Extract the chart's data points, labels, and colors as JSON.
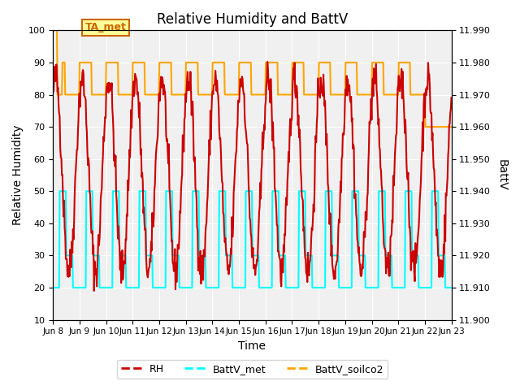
{
  "title": "Relative Humidity and BattV",
  "xlabel": "Time",
  "ylabel_left": "Relative Humidity",
  "ylabel_right": "BattV",
  "ylim_left": [
    10,
    100
  ],
  "ylim_right": [
    11.9,
    11.99
  ],
  "yticks_left": [
    10,
    20,
    30,
    40,
    50,
    60,
    70,
    80,
    90,
    100
  ],
  "yticks_right": [
    11.9,
    11.91,
    11.92,
    11.93,
    11.94,
    11.95,
    11.96,
    11.97,
    11.98,
    11.99
  ],
  "xtick_labels": [
    "Jun 8",
    "Jun 9",
    "Jun 10",
    "Jun 11",
    "Jun 12",
    "Jun 13",
    "Jun 14",
    "Jun 15",
    "Jun 16",
    "Jun 17",
    "Jun 18",
    "Jun 19",
    "Jun 20",
    "Jun 21",
    "Jun 22",
    "Jun 23"
  ],
  "background_color": "#ffffff",
  "plot_bg_color": "#f0f0f0",
  "grid_color": "#ffffff",
  "annotation_text": "TA_met",
  "annotation_color": "#cc6600",
  "annotation_bg": "#ffff99",
  "rh_color": "#cc0000",
  "battv_met_color": "#00ffff",
  "battv_soilco2_color": "#ffa500",
  "legend_labels": [
    "RH",
    "BattV_met",
    "BattV_soilco2"
  ],
  "rh_linewidth": 1.5,
  "battv_linewidth": 1.5
}
